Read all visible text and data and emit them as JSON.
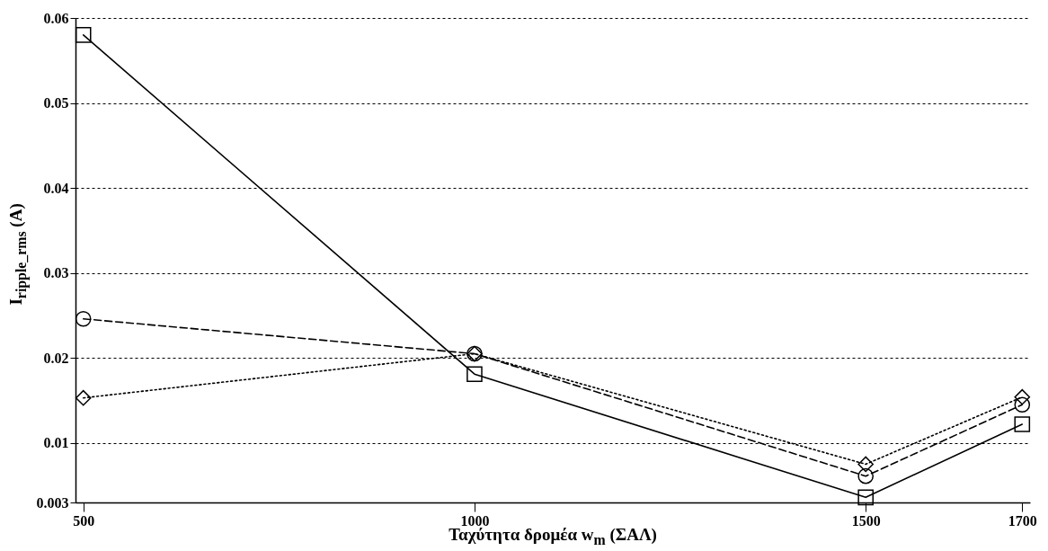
{
  "chart_data": {
    "type": "line",
    "xlabel": "Ταχύτητα δρομέα w$_{m}$ (ΣΑΛ)",
    "ylabel": "I$_{ripple_rms}$ (A)",
    "x": [
      500,
      1000,
      1500,
      1700
    ],
    "series": [
      {
        "color": "#000000",
        "marker": "square",
        "line_style": "solid",
        "values": [
          0.058,
          0.0181,
          0.0036,
          0.0122
        ]
      },
      {
        "color": "#000000",
        "marker": "circle",
        "line_style": "dashed",
        "values": [
          0.0246,
          0.0205,
          0.0061,
          0.0145
        ]
      },
      {
        "color": "#000000",
        "marker": "diamond",
        "line_style": "dotted",
        "values": [
          0.0153,
          0.0205,
          0.0075,
          0.0154
        ]
      }
    ],
    "xlim": [
      490,
      1710
    ],
    "xticks": [
      500,
      1000,
      1500,
      1700
    ],
    "ylim": [
      0.003,
      0.06
    ],
    "yticks": [
      0.003,
      0.01,
      0.02,
      0.03,
      0.04,
      0.05,
      0.06
    ],
    "grid": "y"
  }
}
